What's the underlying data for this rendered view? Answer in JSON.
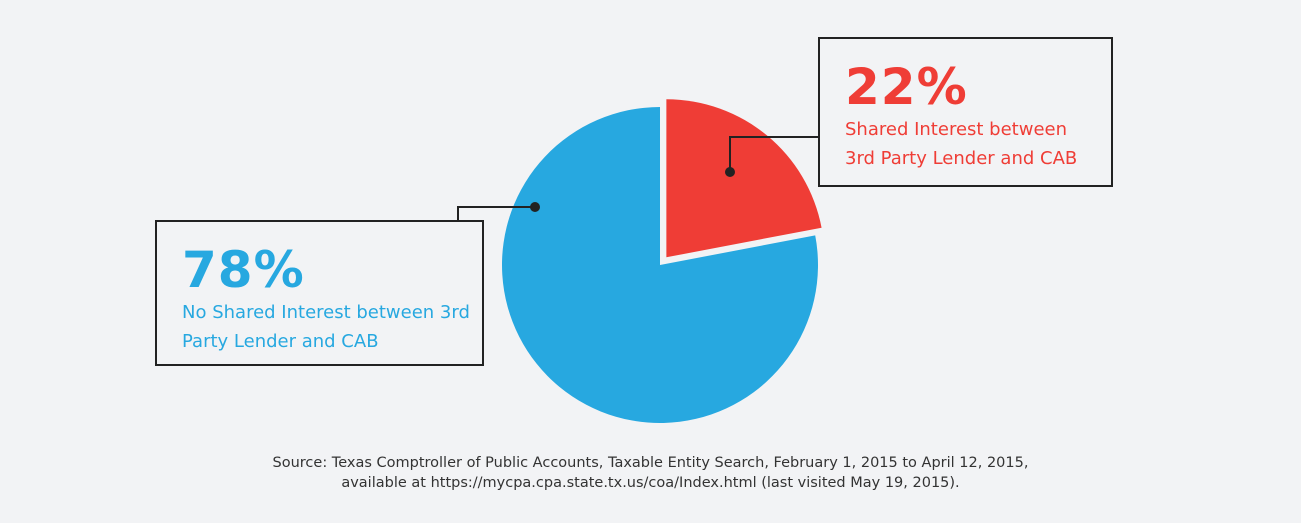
{
  "chart_data": {
    "type": "pie",
    "categories": [
      "Shared Interest between 3rd Party Lender and CAB",
      "No Shared Interest between 3rd Party Lender and CAB"
    ],
    "values": [
      22,
      78
    ],
    "value_labels": [
      "22%",
      "78%"
    ],
    "colors": [
      "#ef3d36",
      "#27a8e0"
    ],
    "source": [
      "Source: Texas Comptroller of Public Accounts, Taxable Entity Search, February 1, 2015 to April 12, 2015,",
      "available at https://mycpa.cpa.state.tx.us/coa/Index.html (last visited May 19, 2015)."
    ]
  }
}
